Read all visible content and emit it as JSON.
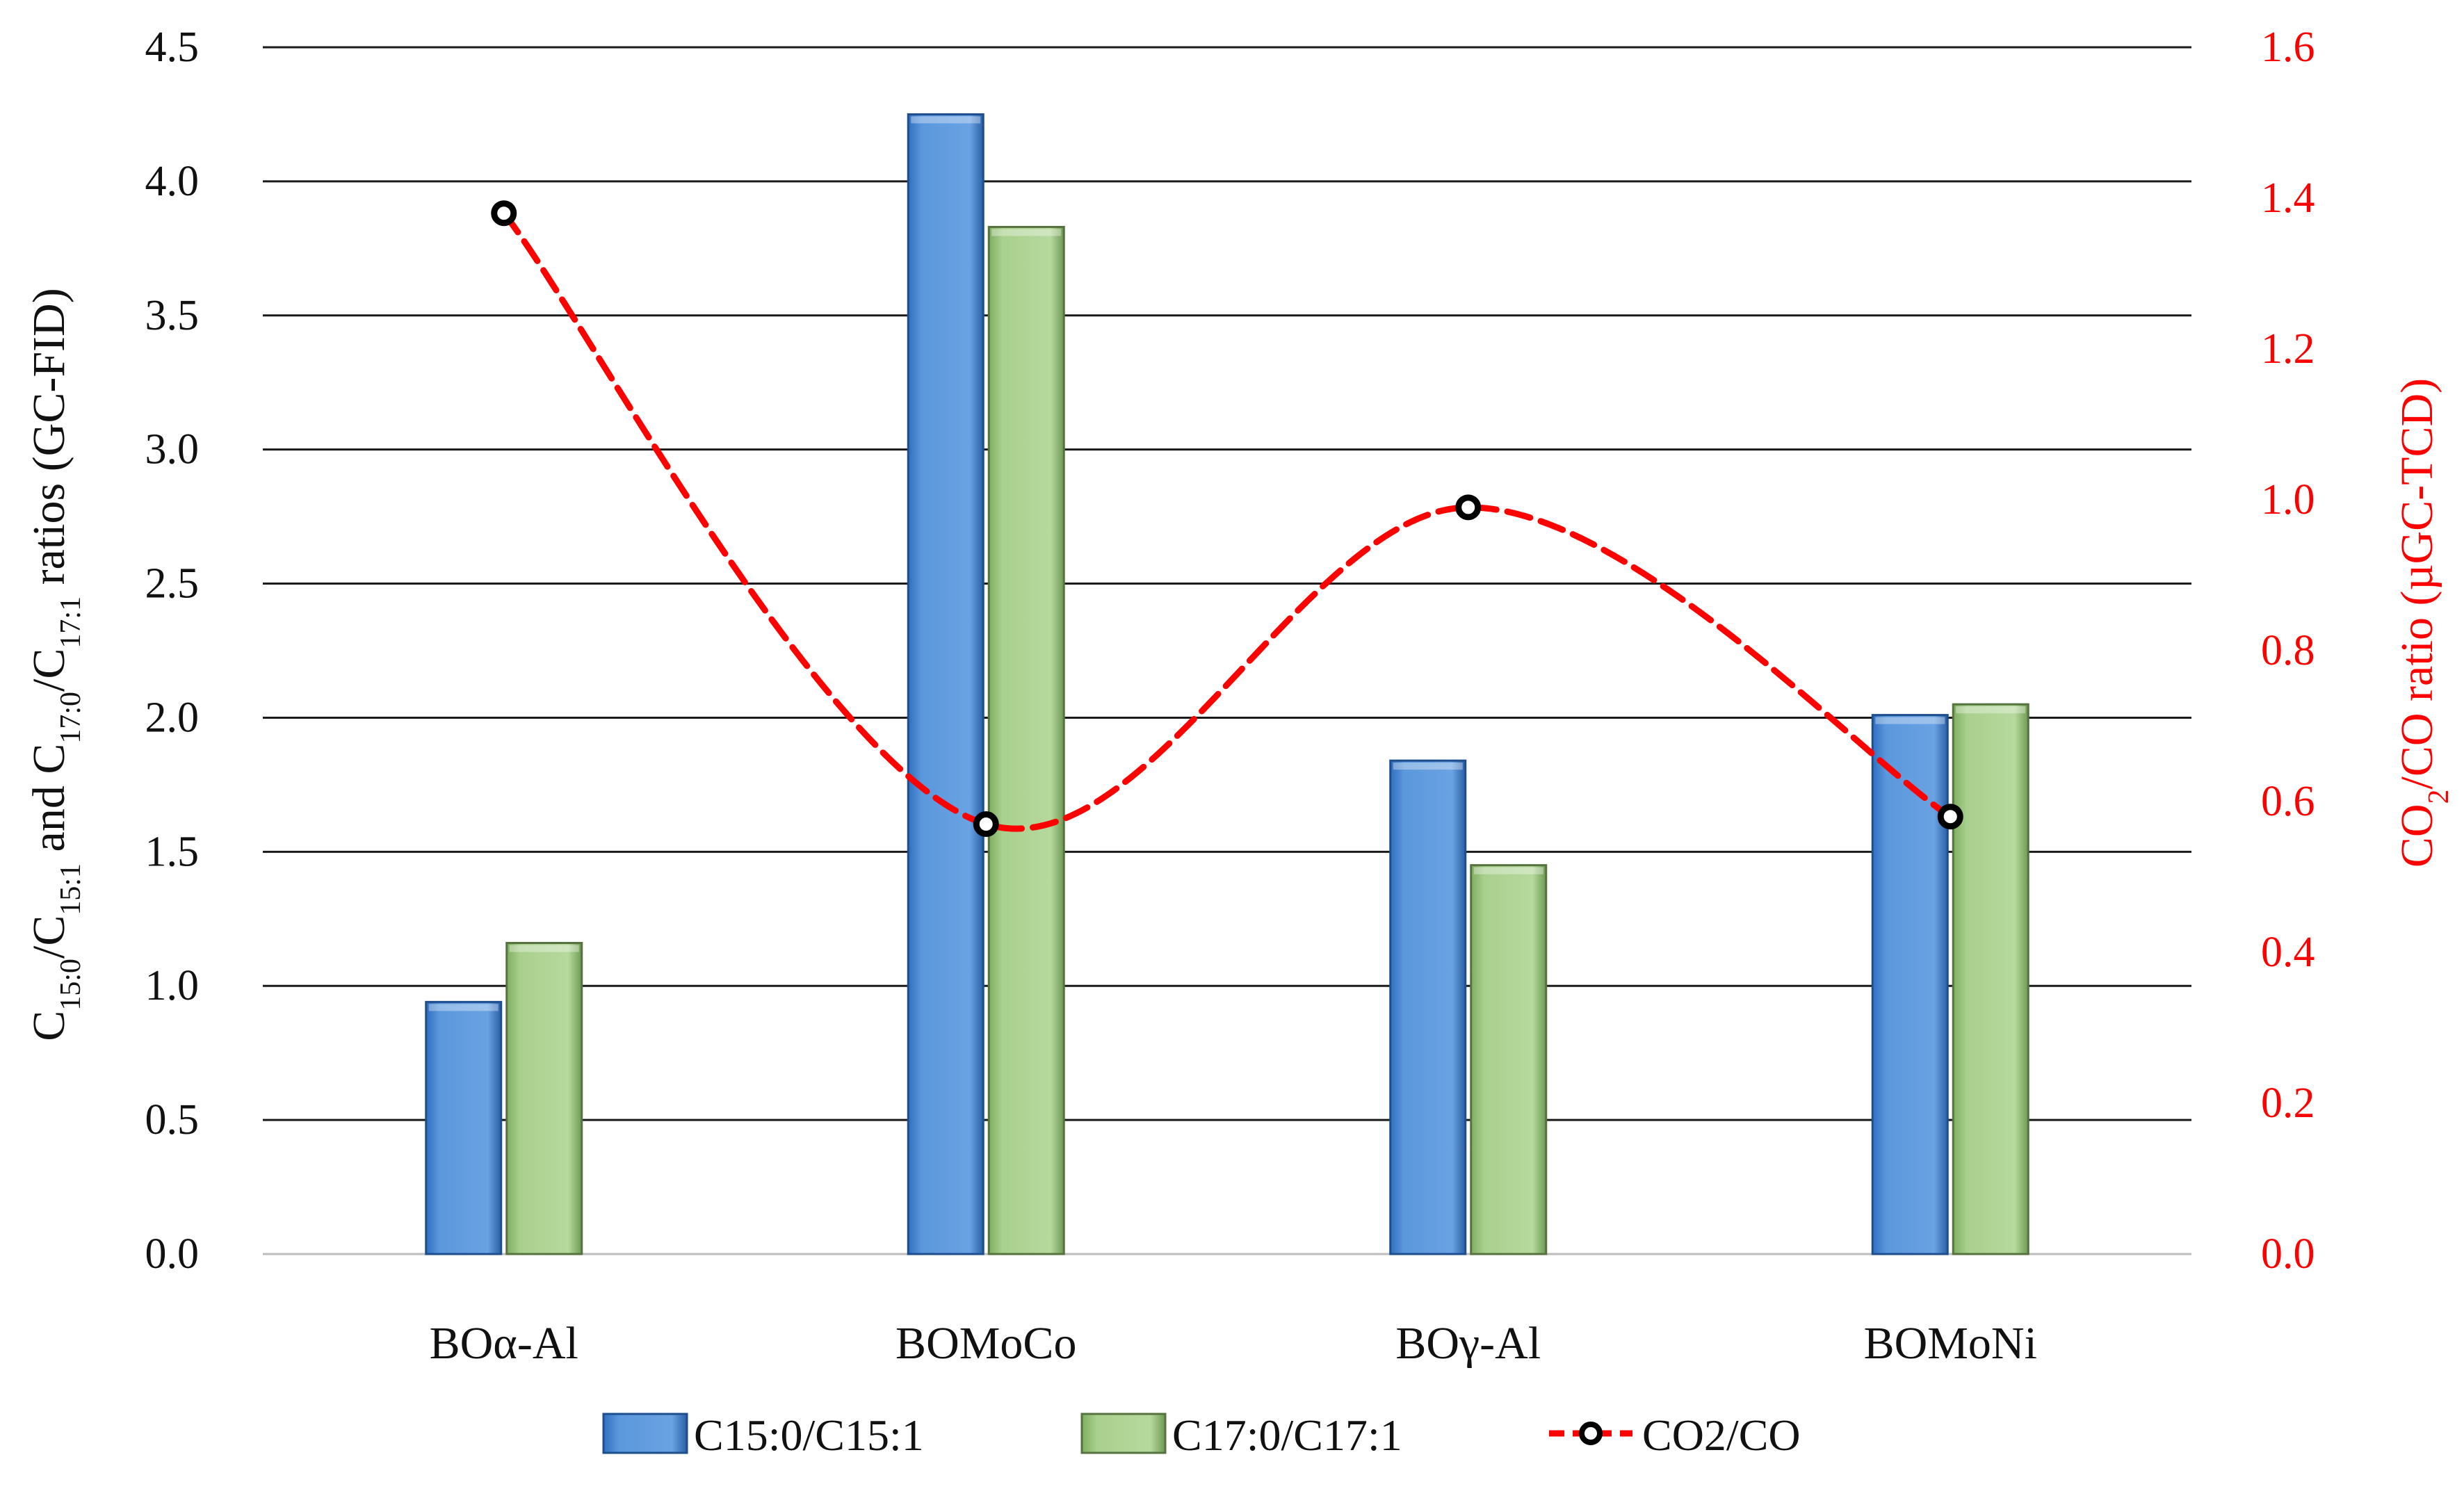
{
  "chart_data": {
    "type": "bar",
    "title": "",
    "categories": [
      "BOα-Al",
      "BOMoCo",
      "BOγ-Al",
      "BOMoNi"
    ],
    "series": [
      {
        "name": "C15:0/C15:1",
        "axis": "left",
        "kind": "bar",
        "color": "#5b97dc",
        "values": [
          0.94,
          4.25,
          1.84,
          2.01
        ]
      },
      {
        "name": "C17:0/C17:1",
        "axis": "left",
        "kind": "bar",
        "color": "#a9d08e",
        "values": [
          1.16,
          3.83,
          1.45,
          2.05
        ]
      },
      {
        "name": "CO2/CO",
        "axis": "right",
        "kind": "line",
        "style": "dashed-smooth",
        "color": "#ff0000",
        "values": [
          1.38,
          0.57,
          0.99,
          0.58
        ]
      }
    ],
    "left_axis": {
      "min": 0,
      "max": 4.5,
      "step": 0.5,
      "tick_labels": [
        "0.0",
        "0.5",
        "1.0",
        "1.5",
        "2.0",
        "2.5",
        "3.0",
        "3.5",
        "4.0",
        "4.5"
      ],
      "label_parts": [
        {
          "t": "C",
          "sub": false
        },
        {
          "t": "15:0",
          "sub": true
        },
        {
          "t": "/C",
          "sub": false
        },
        {
          "t": "15:1",
          "sub": true
        },
        {
          "t": " and C",
          "sub": false
        },
        {
          "t": "17:0",
          "sub": true
        },
        {
          "t": "/C",
          "sub": false
        },
        {
          "t": "17:1",
          "sub": true
        },
        {
          "t": " ratios (GC-FID)",
          "sub": false
        }
      ],
      "color": "#111111"
    },
    "right_axis": {
      "min": 0,
      "max": 1.6,
      "step": 0.2,
      "tick_labels": [
        "0.0",
        "0.2",
        "0.4",
        "0.6",
        "0.8",
        "1.0",
        "1.2",
        "1.4",
        "1.6"
      ],
      "label_parts": [
        {
          "t": "CO",
          "sub": false
        },
        {
          "t": "2",
          "sub": true
        },
        {
          "t": "/CO ratio (µGC-TCD)",
          "sub": false
        }
      ],
      "color": "#ff0000"
    },
    "grid": true,
    "legend": {
      "position": "bottom",
      "items": [
        "C15:0/C15:1",
        "C17:0/C17:1",
        "CO2/CO"
      ]
    }
  }
}
